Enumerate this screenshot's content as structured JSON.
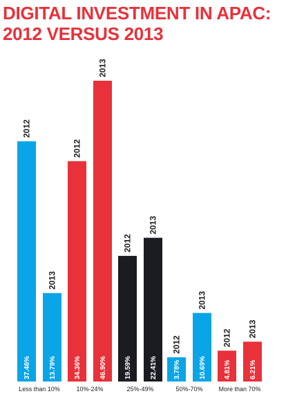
{
  "title_line1": "DIGITAL INVESTMENT IN APAC:",
  "title_line2": "2012 VERSUS 2013",
  "chart_data": {
    "type": "bar",
    "title": "DIGITAL INVESTMENT IN APAC: 2012 VERSUS 2013",
    "categories": [
      "Less than 10%",
      "10%-24%",
      "25%-49%",
      "50%-70%",
      "More than 70%"
    ],
    "series": [
      {
        "name": "2012",
        "values": [
          37.46,
          34.36,
          19.59,
          3.78,
          4.81
        ]
      },
      {
        "name": "2013",
        "values": [
          13.79,
          46.9,
          22.41,
          10.69,
          6.21
        ]
      }
    ],
    "value_labels": {
      "2012": [
        "37.46%",
        "34.36%",
        "19.59%",
        "3.78%",
        "4.81%"
      ],
      "2013": [
        "13.79%",
        "46.90%",
        "22.41%",
        "10.69%",
        "6.21%"
      ]
    },
    "group_colors": [
      "#0aa5e6",
      "#e8313a",
      "#1b1c22",
      "#0aa5e6",
      "#e8313a"
    ],
    "xlabel": "",
    "ylabel": "",
    "ylim": [
      0,
      50
    ],
    "grid": false,
    "legend": "none"
  }
}
